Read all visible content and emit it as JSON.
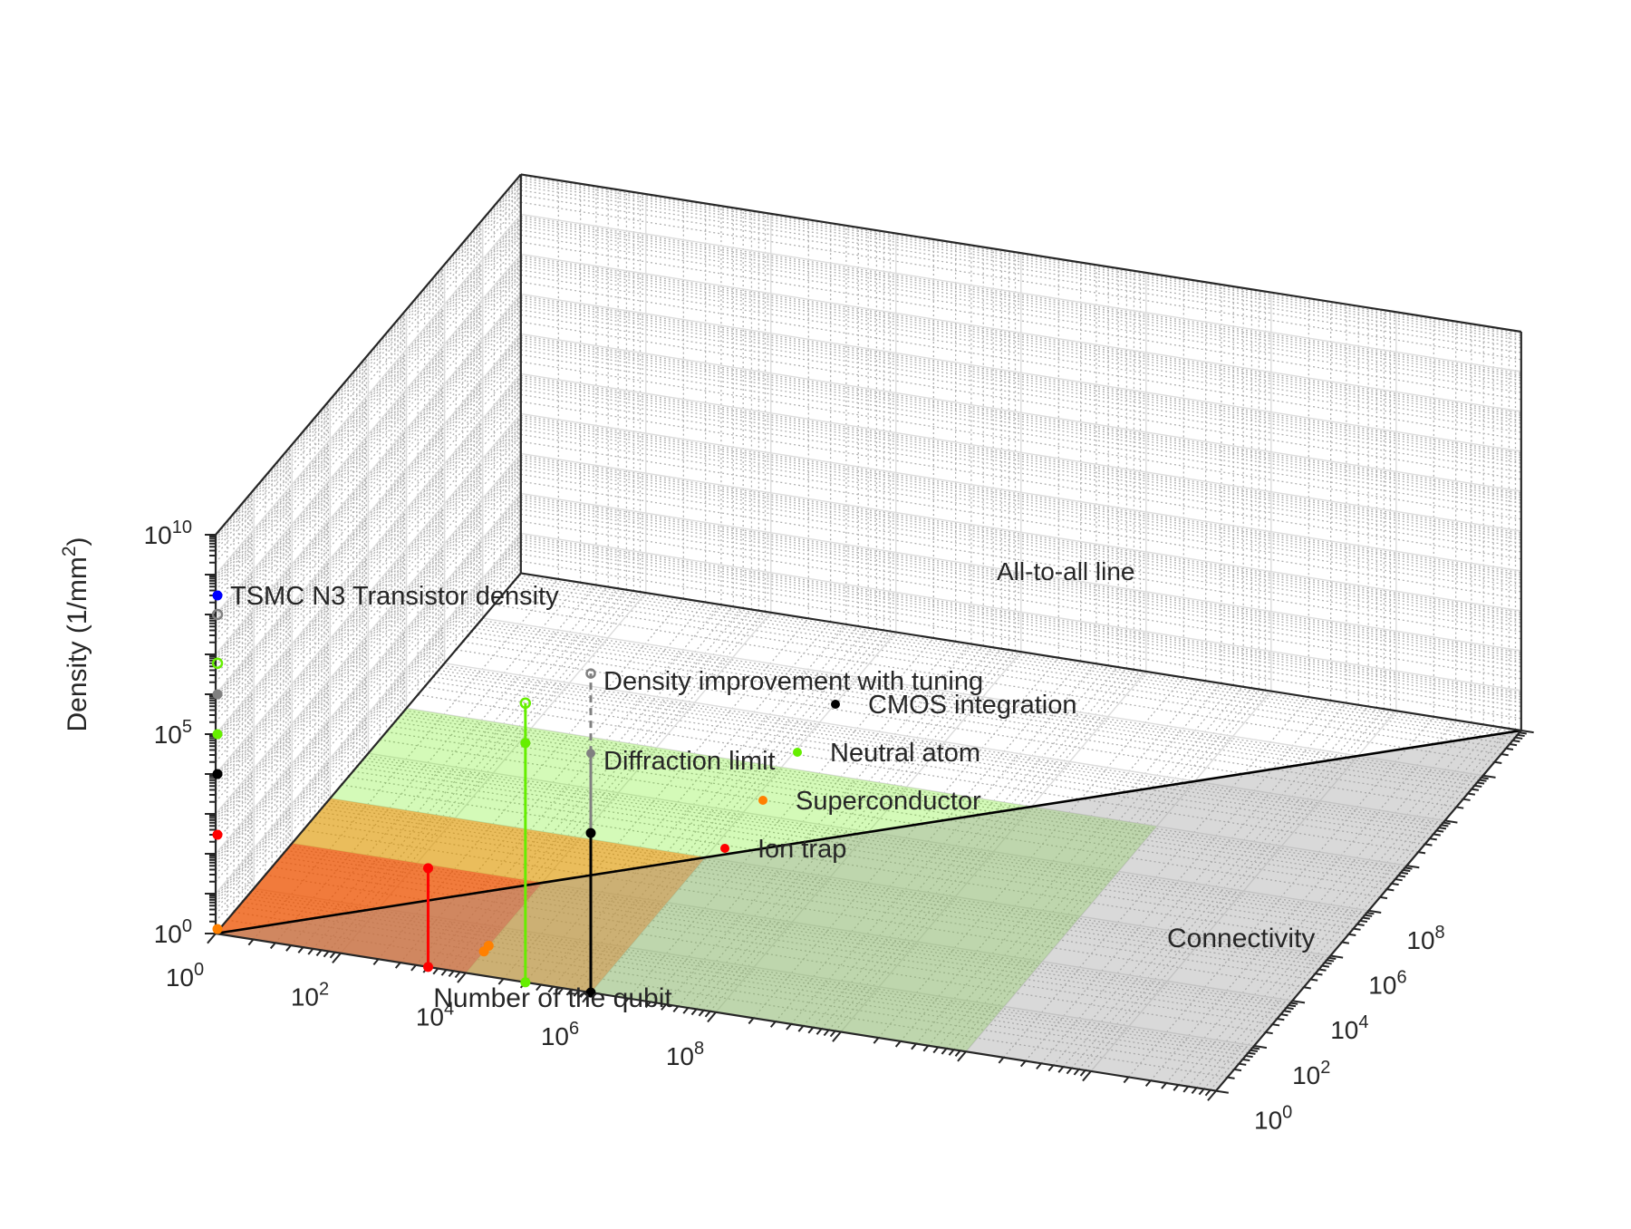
{
  "chart_data": {
    "type": "scatter",
    "projection": "3d",
    "log_axes": [
      "x",
      "y",
      "z"
    ],
    "xlabel": "Number of the qubit",
    "ylabel": "Connectivity",
    "zlabel": "Density (1/mm",
    "zlabel_sup": "2",
    "zlabel_close": ")",
    "xlim": [
      1,
      100000000
    ],
    "ylim": [
      1,
      100000000
    ],
    "zlim": [
      1,
      10000000000
    ],
    "grid": true,
    "x_ticks": [
      {
        "base": "10",
        "exp": "0"
      },
      {
        "base": "10",
        "exp": "2"
      },
      {
        "base": "10",
        "exp": "4"
      },
      {
        "base": "10",
        "exp": "6"
      },
      {
        "base": "10",
        "exp": "8"
      }
    ],
    "y_ticks": [
      {
        "base": "10",
        "exp": "0"
      },
      {
        "base": "10",
        "exp": "2"
      },
      {
        "base": "10",
        "exp": "4"
      },
      {
        "base": "10",
        "exp": "6"
      },
      {
        "base": "10",
        "exp": "8"
      }
    ],
    "z_ticks": [
      {
        "base": "10",
        "exp": "0"
      },
      {
        "base": "10",
        "exp": "5"
      },
      {
        "base": "10",
        "exp": "10"
      }
    ],
    "series": [
      {
        "name": "Ion trap",
        "color": "#ff0000",
        "points": [
          {
            "x": 50,
            "y": 1,
            "z": 1
          },
          {
            "x": 50,
            "y": 1,
            "z": 300
          }
        ],
        "wall_markers": [
          300
        ]
      },
      {
        "name": "Superconductor",
        "color": "#ff8000",
        "points": [
          {
            "x": 100,
            "y": 3,
            "z": 1
          },
          {
            "x": 100,
            "y": 4,
            "z": 1
          }
        ],
        "wall_markers": [
          1.3
        ]
      },
      {
        "name": "Neutral atom",
        "color": "#66ee00",
        "points": [
          {
            "x": 300,
            "y": 1,
            "z": 1
          },
          {
            "x": 300,
            "y": 1,
            "z": 1000000
          },
          {
            "x": 300,
            "y": 1,
            "z": 10000000
          }
        ],
        "wall_markers": [
          100000,
          6000000
        ]
      },
      {
        "name": "CMOS integration",
        "color": "#000000",
        "points": [
          {
            "x": 1000,
            "y": 1,
            "z": 1
          },
          {
            "x": 1000,
            "y": 1,
            "z": 10000
          }
        ],
        "wall_markers": [
          10000
        ]
      }
    ],
    "reference_lines": [
      {
        "name": "Diffraction limit",
        "color": "#808080",
        "x": 1000,
        "y": 1,
        "z_from": 10000,
        "z": 1000000
      },
      {
        "name": "Density improvement with tuning",
        "color": "#808080",
        "x": 1000,
        "y": 1,
        "z_from": 1000000,
        "z": 100000000
      }
    ],
    "annotations": [
      {
        "text": "TSMC N3 Transistor density",
        "color": "#0000ff",
        "z": 300000000
      },
      {
        "text": "All-to-all line"
      }
    ],
    "regions": [
      {
        "series": "Superconductor",
        "color": "#ff8000",
        "x": [
          1,
          1000
        ],
        "y": [
          1,
          1000
        ]
      },
      {
        "series": "Neutral atom",
        "color": "#66ee00",
        "x": [
          1,
          1000000
        ],
        "y": [
          1,
          100000
        ]
      },
      {
        "series": "Ion trap",
        "color": "#ff0000",
        "x": [
          1,
          100
        ],
        "y": [
          1,
          100
        ]
      }
    ]
  }
}
